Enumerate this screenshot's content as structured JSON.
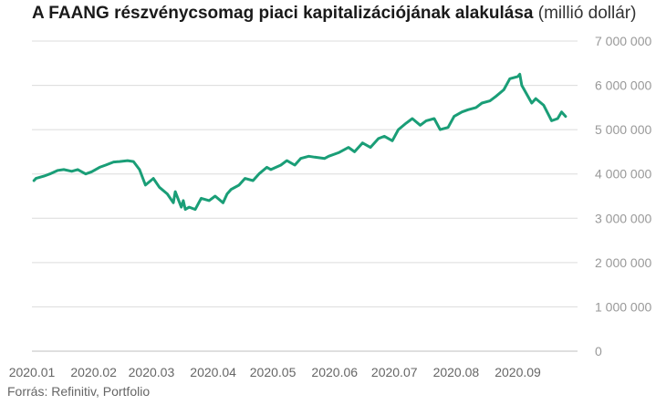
{
  "chart_data": {
    "type": "line",
    "title": "A FAANG részvénycsomag piaci kapitalizációjának alakulása",
    "title_unit": "(millió dollár)",
    "source": "Forrás: Refinitiv, Portfolio",
    "ylim": [
      0,
      7000000
    ],
    "y_ticks": [
      0,
      1000000,
      2000000,
      3000000,
      4000000,
      5000000,
      6000000,
      7000000
    ],
    "y_tick_labels": [
      "0",
      "1 000 000",
      "2 000 000",
      "3 000 000",
      "4 000 000",
      "5 000 000",
      "6 000 000",
      "7 000 000"
    ],
    "x_tick_labels": [
      "2020.01",
      "2020.02",
      "2020.03",
      "2020.04",
      "2020.05",
      "2020.06",
      "2020.07",
      "2020.08",
      "2020.09"
    ],
    "grid": true,
    "line_color": "#1a9e77",
    "series": [
      {
        "x": [
          "2020-01-02",
          "2020-01-03",
          "2020-01-07",
          "2020-01-10",
          "2020-01-14",
          "2020-01-17",
          "2020-01-21",
          "2020-01-24",
          "2020-01-28",
          "2020-01-31",
          "2020-02-04",
          "2020-02-07",
          "2020-02-11",
          "2020-02-14",
          "2020-02-18",
          "2020-02-21",
          "2020-02-24",
          "2020-02-27",
          "2020-03-02",
          "2020-03-05",
          "2020-03-09",
          "2020-03-12",
          "2020-03-13",
          "2020-03-16",
          "2020-03-17",
          "2020-03-18",
          "2020-03-20",
          "2020-03-23",
          "2020-03-26",
          "2020-03-30",
          "2020-04-02",
          "2020-04-06",
          "2020-04-08",
          "2020-04-10",
          "2020-04-14",
          "2020-04-17",
          "2020-04-21",
          "2020-04-24",
          "2020-04-28",
          "2020-04-30",
          "2020-05-05",
          "2020-05-08",
          "2020-05-12",
          "2020-05-15",
          "2020-05-19",
          "2020-05-22",
          "2020-05-27",
          "2020-05-29",
          "2020-06-03",
          "2020-06-08",
          "2020-06-11",
          "2020-06-15",
          "2020-06-19",
          "2020-06-23",
          "2020-06-26",
          "2020-06-30",
          "2020-07-03",
          "2020-07-07",
          "2020-07-10",
          "2020-07-14",
          "2020-07-17",
          "2020-07-21",
          "2020-07-24",
          "2020-07-28",
          "2020-07-31",
          "2020-08-04",
          "2020-08-07",
          "2020-08-11",
          "2020-08-14",
          "2020-08-18",
          "2020-08-21",
          "2020-08-25",
          "2020-08-28",
          "2020-09-01",
          "2020-09-02",
          "2020-09-03",
          "2020-09-08",
          "2020-09-10",
          "2020-09-14",
          "2020-09-18",
          "2020-09-21",
          "2020-09-23",
          "2020-09-25"
        ],
        "values": [
          3850000,
          3900000,
          3950000,
          4000000,
          4080000,
          4100000,
          4060000,
          4100000,
          4000000,
          4050000,
          4150000,
          4200000,
          4270000,
          4280000,
          4300000,
          4280000,
          4100000,
          3750000,
          3900000,
          3700000,
          3550000,
          3350000,
          3600000,
          3250000,
          3400000,
          3200000,
          3250000,
          3200000,
          3450000,
          3400000,
          3500000,
          3350000,
          3550000,
          3650000,
          3750000,
          3900000,
          3850000,
          4000000,
          4150000,
          4100000,
          4200000,
          4300000,
          4200000,
          4350000,
          4400000,
          4380000,
          4350000,
          4400000,
          4480000,
          4600000,
          4500000,
          4700000,
          4600000,
          4800000,
          4850000,
          4750000,
          5000000,
          5150000,
          5250000,
          5100000,
          5200000,
          5250000,
          5000000,
          5050000,
          5300000,
          5400000,
          5450000,
          5500000,
          5600000,
          5650000,
          5750000,
          5900000,
          6150000,
          6200000,
          6250000,
          6000000,
          5600000,
          5700000,
          5550000,
          5200000,
          5250000,
          5400000,
          5300000
        ]
      }
    ]
  }
}
